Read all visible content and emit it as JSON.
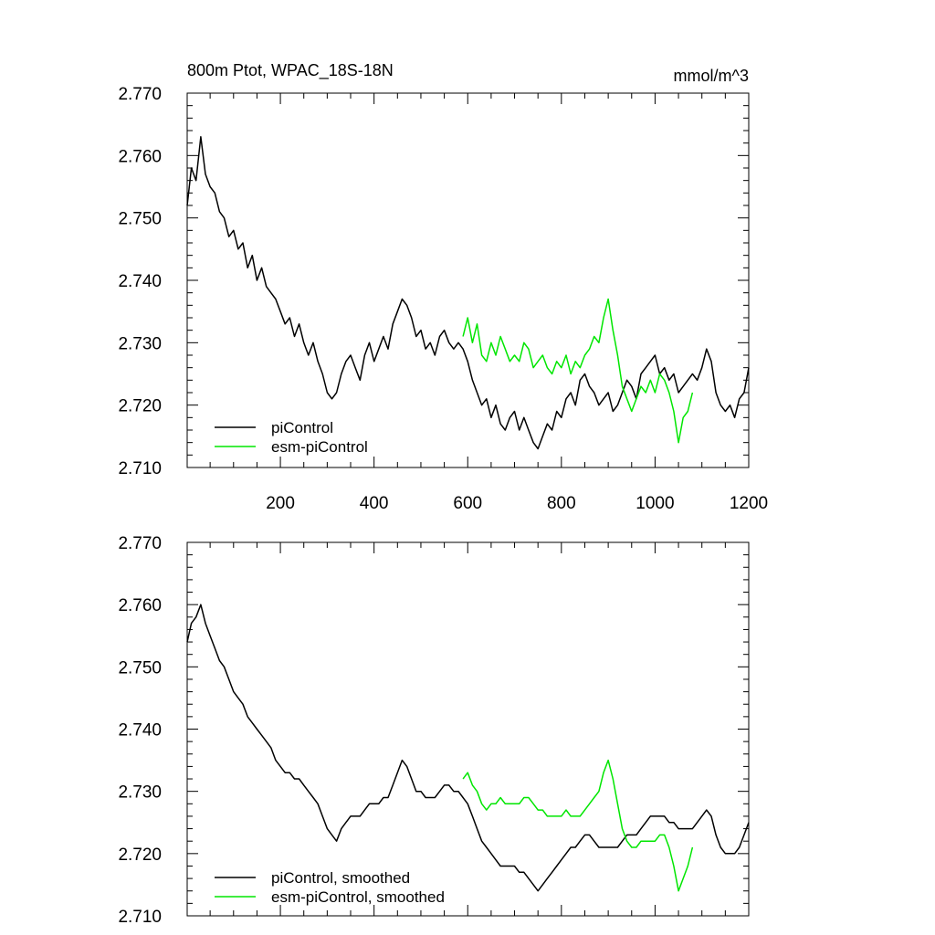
{
  "title_left": "800m Ptot, WPAC_18S-18N",
  "title_right": "mmol/m^3",
  "colors": {
    "piControl": "#000000",
    "esm_piControl": "#00e600"
  },
  "chart_data": [
    {
      "type": "line",
      "panel": "raw",
      "xlim": [
        1,
        1200
      ],
      "ylim": [
        2.71,
        2.77
      ],
      "yticks": [
        2.77,
        2.76,
        2.75,
        2.74,
        2.73,
        2.72,
        2.71
      ],
      "ytick_labels": [
        "2.770",
        "2.760",
        "2.750",
        "2.740",
        "2.730",
        "2.720",
        "2.710"
      ],
      "xticks": [
        200,
        400,
        600,
        800,
        1000,
        1200
      ],
      "xtick_labels": [
        "200",
        "400",
        "600",
        "800",
        "1000",
        "1200"
      ],
      "legend_position": "bottom-left",
      "series": [
        {
          "name": "piControl",
          "color": "#000000",
          "x": [
            1,
            10,
            20,
            30,
            40,
            50,
            60,
            70,
            80,
            90,
            100,
            110,
            120,
            130,
            140,
            150,
            160,
            170,
            180,
            190,
            200,
            210,
            220,
            230,
            240,
            250,
            260,
            270,
            280,
            290,
            300,
            310,
            320,
            330,
            340,
            350,
            360,
            370,
            380,
            390,
            400,
            410,
            420,
            430,
            440,
            450,
            460,
            470,
            480,
            490,
            500,
            510,
            520,
            530,
            540,
            550,
            560,
            570,
            580,
            590,
            600,
            610,
            620,
            630,
            640,
            650,
            660,
            670,
            680,
            690,
            700,
            710,
            720,
            730,
            740,
            750,
            760,
            770,
            780,
            790,
            800,
            810,
            820,
            830,
            840,
            850,
            860,
            870,
            880,
            890,
            900,
            910,
            920,
            930,
            940,
            950,
            960,
            970,
            980,
            990,
            1000,
            1010,
            1020,
            1030,
            1040,
            1050,
            1060,
            1070,
            1080,
            1090,
            1100,
            1110,
            1120,
            1130,
            1140,
            1150,
            1160,
            1170,
            1180,
            1190,
            1200
          ],
          "y": [
            2.752,
            2.758,
            2.756,
            2.763,
            2.757,
            2.755,
            2.754,
            2.751,
            2.75,
            2.747,
            2.748,
            2.745,
            2.746,
            2.742,
            2.744,
            2.74,
            2.742,
            2.739,
            2.738,
            2.737,
            2.735,
            2.733,
            2.734,
            2.731,
            2.733,
            2.73,
            2.728,
            2.73,
            2.727,
            2.725,
            2.722,
            2.721,
            2.722,
            2.725,
            2.727,
            2.728,
            2.726,
            2.724,
            2.728,
            2.73,
            2.727,
            2.729,
            2.731,
            2.729,
            2.733,
            2.735,
            2.737,
            2.736,
            2.734,
            2.731,
            2.732,
            2.729,
            2.73,
            2.728,
            2.731,
            2.732,
            2.73,
            2.729,
            2.73,
            2.729,
            2.727,
            2.724,
            2.722,
            2.72,
            2.721,
            2.718,
            2.72,
            2.717,
            2.716,
            2.718,
            2.719,
            2.716,
            2.718,
            2.716,
            2.714,
            2.713,
            2.715,
            2.717,
            2.716,
            2.719,
            2.718,
            2.721,
            2.722,
            2.72,
            2.724,
            2.725,
            2.723,
            2.722,
            2.72,
            2.721,
            2.722,
            2.719,
            2.72,
            2.722,
            2.724,
            2.723,
            2.721,
            2.725,
            2.726,
            2.727,
            2.728,
            2.725,
            2.726,
            2.724,
            2.725,
            2.722,
            2.723,
            2.724,
            2.725,
            2.724,
            2.726,
            2.729,
            2.727,
            2.722,
            2.72,
            2.719,
            2.72,
            2.718,
            2.721,
            2.722,
            2.726
          ]
        },
        {
          "name": "esm-piControl",
          "color": "#00e600",
          "x": [
            590,
            600,
            610,
            620,
            630,
            640,
            650,
            660,
            670,
            680,
            690,
            700,
            710,
            720,
            730,
            740,
            750,
            760,
            770,
            780,
            790,
            800,
            810,
            820,
            830,
            840,
            850,
            860,
            870,
            880,
            890,
            900,
            910,
            920,
            930,
            940,
            950,
            960,
            970,
            980,
            990,
            1000,
            1010,
            1020,
            1030,
            1040,
            1050,
            1060,
            1070,
            1080
          ],
          "y": [
            2.731,
            2.734,
            2.73,
            2.733,
            2.728,
            2.727,
            2.73,
            2.728,
            2.731,
            2.729,
            2.727,
            2.728,
            2.727,
            2.73,
            2.729,
            2.726,
            2.727,
            2.728,
            2.726,
            2.725,
            2.727,
            2.726,
            2.728,
            2.725,
            2.727,
            2.726,
            2.728,
            2.729,
            2.731,
            2.73,
            2.734,
            2.737,
            2.732,
            2.728,
            2.723,
            2.721,
            2.719,
            2.721,
            2.723,
            2.722,
            2.724,
            2.722,
            2.725,
            2.724,
            2.722,
            2.719,
            2.714,
            2.718,
            2.719,
            2.722
          ]
        }
      ]
    },
    {
      "type": "line",
      "panel": "smoothed",
      "xlim": [
        1,
        1200
      ],
      "ylim": [
        2.71,
        2.77
      ],
      "yticks": [
        2.77,
        2.76,
        2.75,
        2.74,
        2.73,
        2.72,
        2.71
      ],
      "ytick_labels": [
        "2.770",
        "2.760",
        "2.750",
        "2.740",
        "2.730",
        "2.720",
        "2.710"
      ],
      "xticks": [
        200,
        400,
        600,
        800,
        1000,
        1200
      ],
      "legend_position": "bottom-left",
      "series": [
        {
          "name": "piControl, smoothed",
          "color": "#000000",
          "x": [
            1,
            10,
            20,
            30,
            40,
            50,
            60,
            70,
            80,
            90,
            100,
            110,
            120,
            130,
            140,
            150,
            160,
            170,
            180,
            190,
            200,
            210,
            220,
            230,
            240,
            250,
            260,
            270,
            280,
            290,
            300,
            310,
            320,
            330,
            340,
            350,
            360,
            370,
            380,
            390,
            400,
            410,
            420,
            430,
            440,
            450,
            460,
            470,
            480,
            490,
            500,
            510,
            520,
            530,
            540,
            550,
            560,
            570,
            580,
            590,
            600,
            610,
            620,
            630,
            640,
            650,
            660,
            670,
            680,
            690,
            700,
            710,
            720,
            730,
            740,
            750,
            760,
            770,
            780,
            790,
            800,
            810,
            820,
            830,
            840,
            850,
            860,
            870,
            880,
            890,
            900,
            910,
            920,
            930,
            940,
            950,
            960,
            970,
            980,
            990,
            1000,
            1010,
            1020,
            1030,
            1040,
            1050,
            1060,
            1070,
            1080,
            1090,
            1100,
            1110,
            1120,
            1130,
            1140,
            1150,
            1160,
            1170,
            1180,
            1190,
            1200
          ],
          "y": [
            2.754,
            2.757,
            2.758,
            2.76,
            2.757,
            2.755,
            2.753,
            2.751,
            2.75,
            2.748,
            2.746,
            2.745,
            2.744,
            2.742,
            2.741,
            2.74,
            2.739,
            2.738,
            2.737,
            2.735,
            2.734,
            2.733,
            2.733,
            2.732,
            2.732,
            2.731,
            2.73,
            2.729,
            2.728,
            2.726,
            2.724,
            2.723,
            2.722,
            2.724,
            2.725,
            2.726,
            2.726,
            2.726,
            2.727,
            2.728,
            2.728,
            2.728,
            2.729,
            2.729,
            2.731,
            2.733,
            2.735,
            2.734,
            2.732,
            2.73,
            2.73,
            2.729,
            2.729,
            2.729,
            2.73,
            2.731,
            2.731,
            2.73,
            2.73,
            2.729,
            2.728,
            2.726,
            2.724,
            2.722,
            2.721,
            2.72,
            2.719,
            2.718,
            2.718,
            2.718,
            2.718,
            2.717,
            2.717,
            2.716,
            2.715,
            2.714,
            2.715,
            2.716,
            2.717,
            2.718,
            2.719,
            2.72,
            2.721,
            2.721,
            2.722,
            2.723,
            2.723,
            2.722,
            2.721,
            2.721,
            2.721,
            2.721,
            2.721,
            2.722,
            2.723,
            2.723,
            2.723,
            2.724,
            2.725,
            2.726,
            2.726,
            2.726,
            2.726,
            2.725,
            2.725,
            2.724,
            2.724,
            2.724,
            2.724,
            2.725,
            2.726,
            2.727,
            2.726,
            2.723,
            2.721,
            2.72,
            2.72,
            2.72,
            2.721,
            2.723,
            2.725
          ]
        },
        {
          "name": "esm-piControl, smoothed",
          "color": "#00e600",
          "x": [
            590,
            600,
            610,
            620,
            630,
            640,
            650,
            660,
            670,
            680,
            690,
            700,
            710,
            720,
            730,
            740,
            750,
            760,
            770,
            780,
            790,
            800,
            810,
            820,
            830,
            840,
            850,
            860,
            870,
            880,
            890,
            900,
            910,
            920,
            930,
            940,
            950,
            960,
            970,
            980,
            990,
            1000,
            1010,
            1020,
            1030,
            1040,
            1050,
            1060,
            1070,
            1080
          ],
          "y": [
            2.732,
            2.733,
            2.731,
            2.73,
            2.728,
            2.727,
            2.728,
            2.728,
            2.729,
            2.728,
            2.728,
            2.728,
            2.728,
            2.729,
            2.729,
            2.728,
            2.727,
            2.727,
            2.726,
            2.726,
            2.726,
            2.726,
            2.727,
            2.726,
            2.726,
            2.726,
            2.727,
            2.728,
            2.729,
            2.73,
            2.733,
            2.735,
            2.732,
            2.728,
            2.724,
            2.722,
            2.721,
            2.721,
            2.722,
            2.722,
            2.722,
            2.722,
            2.723,
            2.723,
            2.721,
            2.718,
            2.714,
            2.716,
            2.718,
            2.721
          ]
        }
      ]
    }
  ]
}
